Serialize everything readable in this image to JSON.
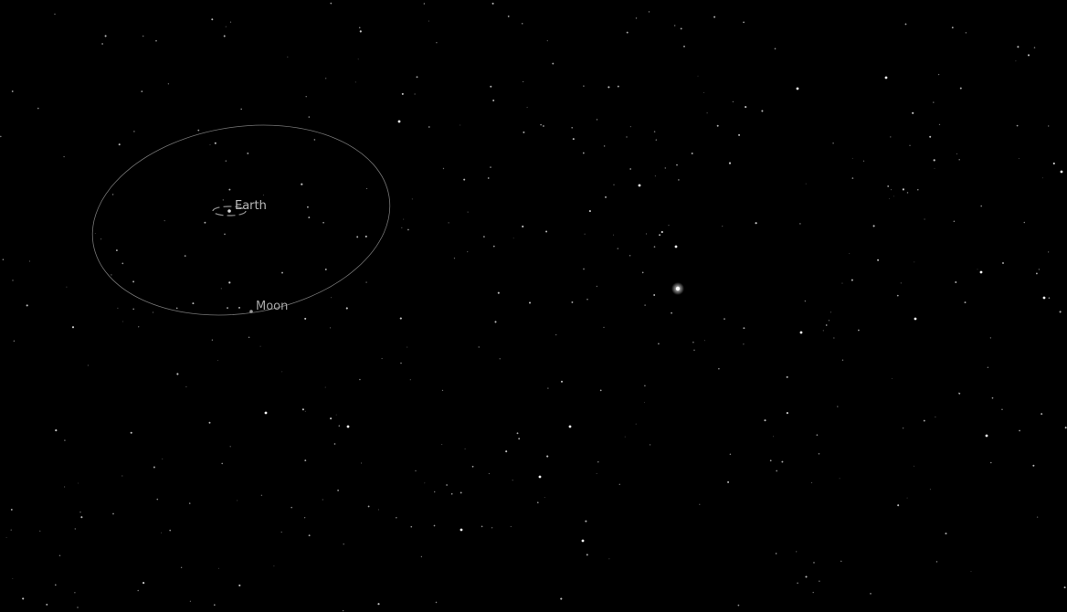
{
  "scene": {
    "background_color": "#000000",
    "orbit_color": "#8a8a8a",
    "label_color": "#b9b9b9"
  },
  "bodies": {
    "earth": {
      "label": "Earth"
    },
    "moon": {
      "label": "Moon"
    }
  }
}
